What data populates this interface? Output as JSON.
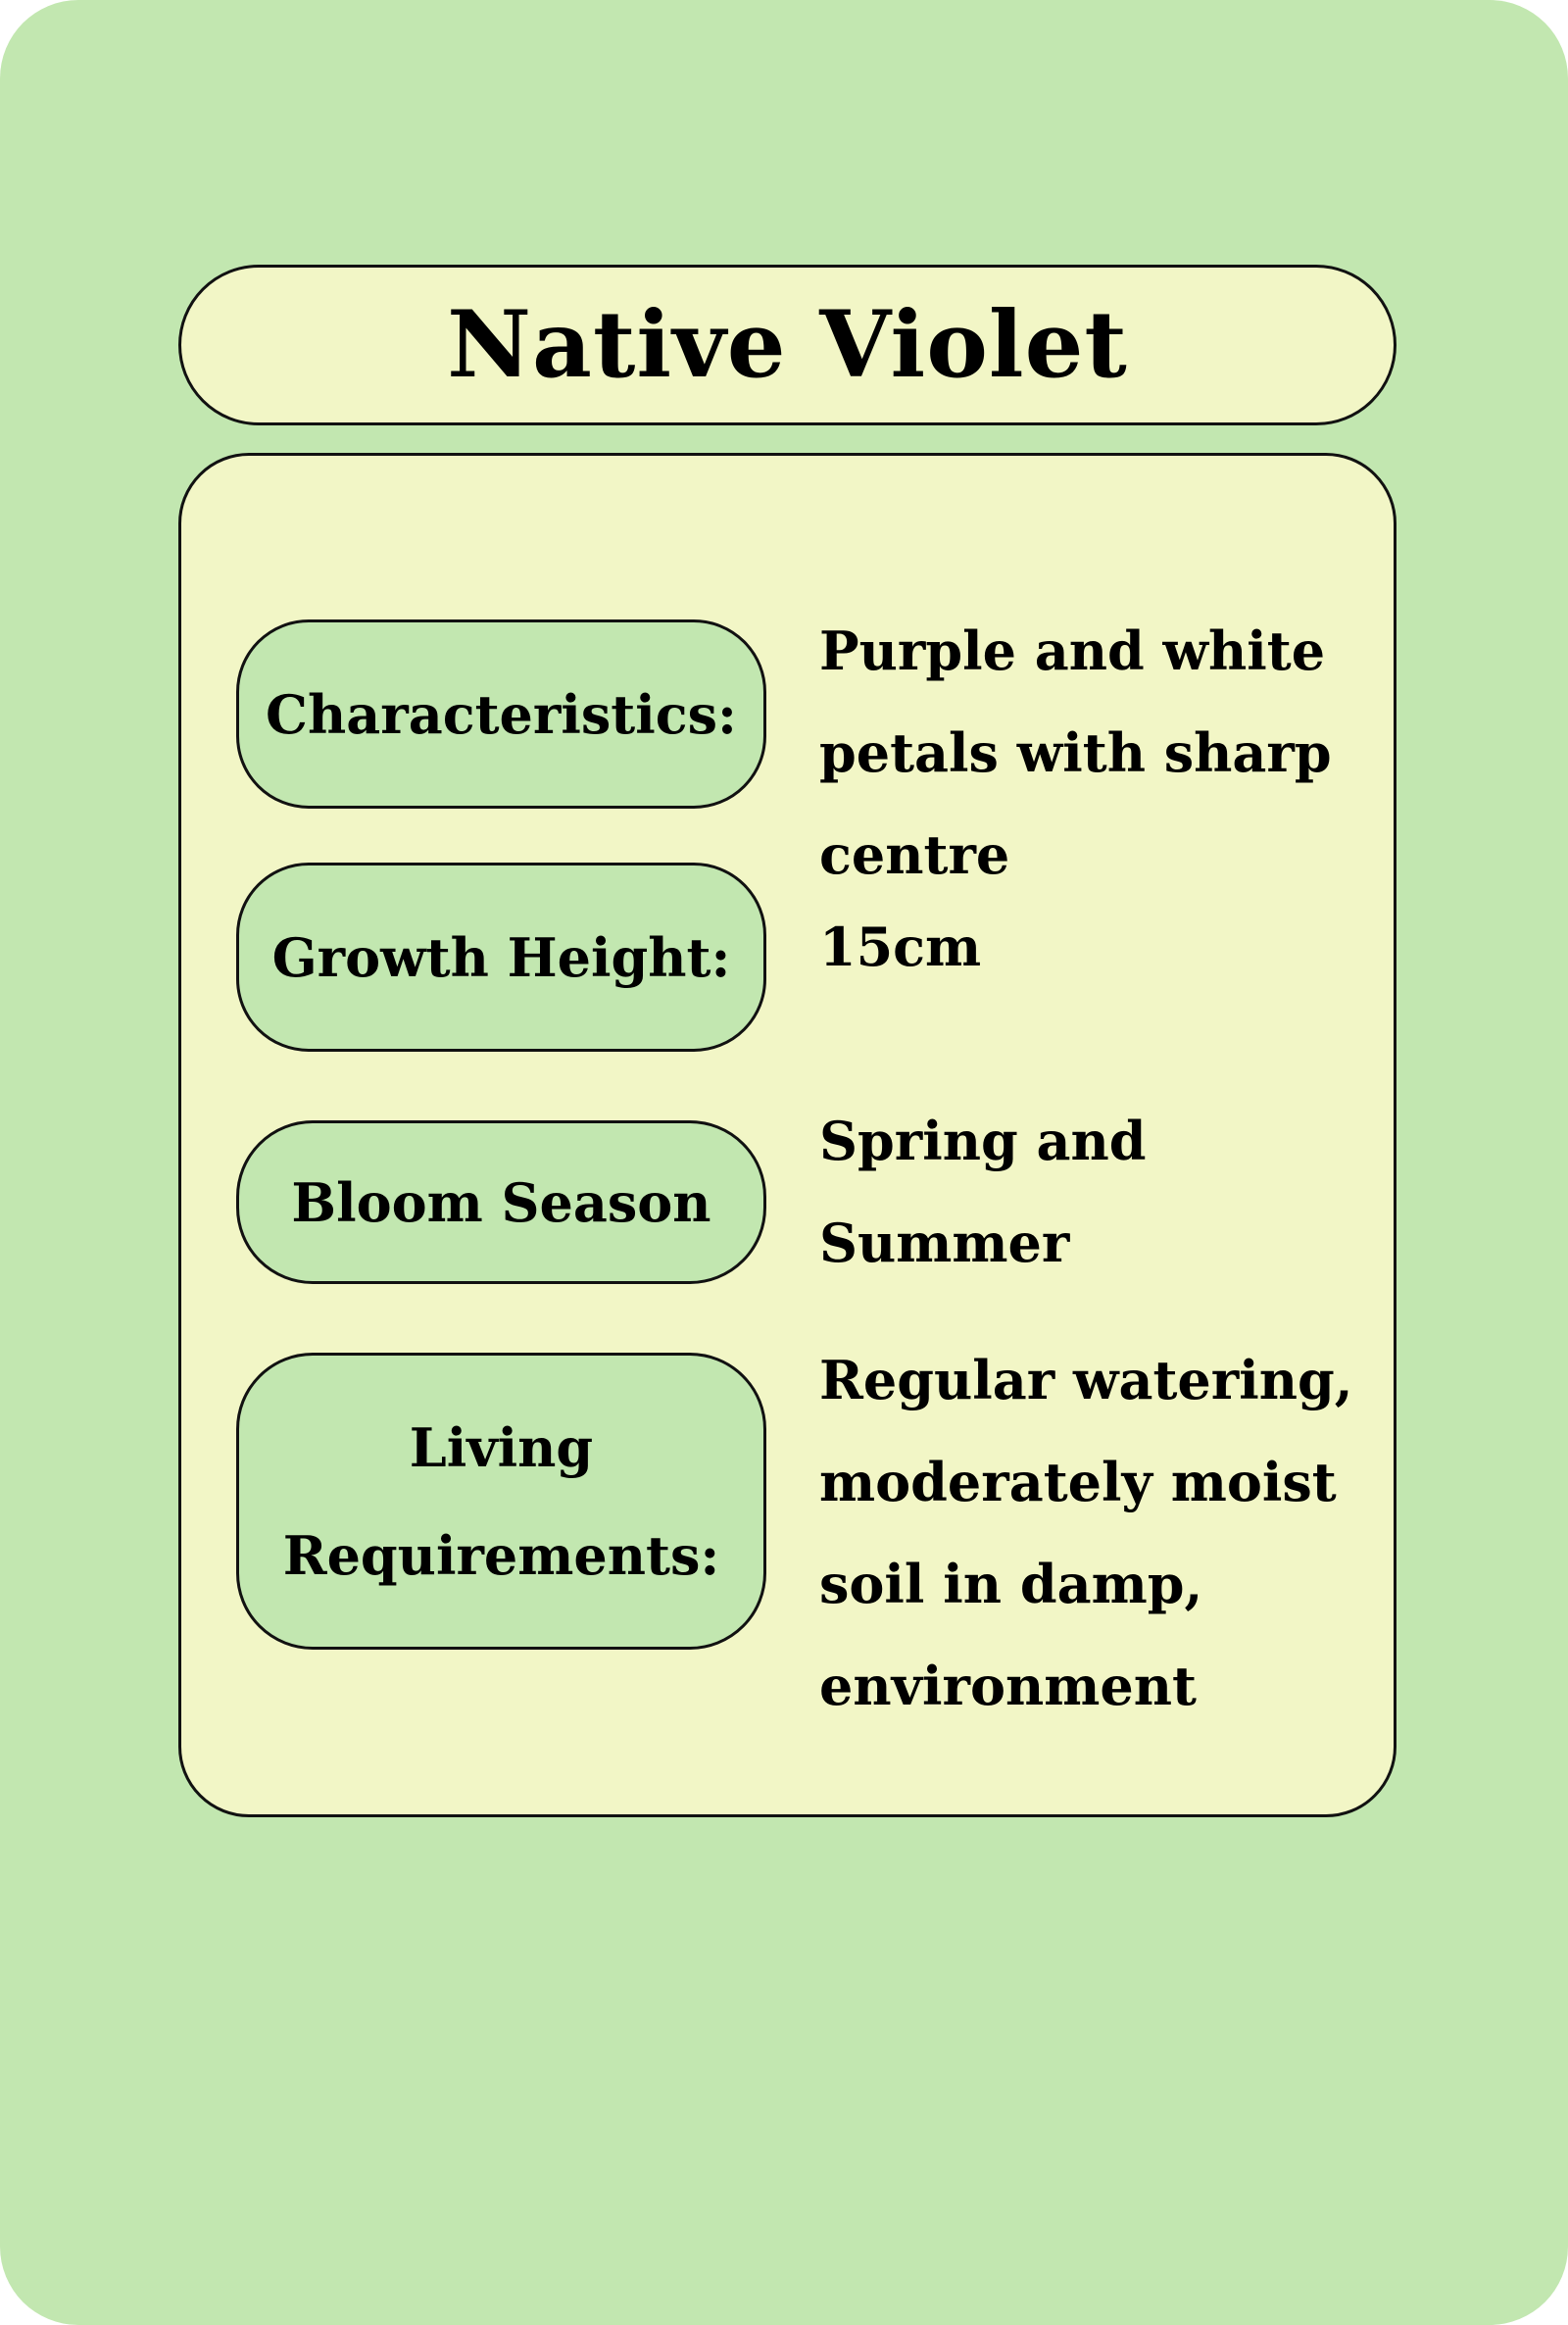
{
  "title": "Native Violet",
  "colors": {
    "background": "#c2e7b0",
    "panel": "#f2f6c6",
    "label_pill": "#c2e7b0",
    "border": "#111111",
    "text": "#000000"
  },
  "rows": [
    {
      "label": "Characteristics:",
      "value_lines": [
        "Purple and white",
        "petals with sharp",
        "centre"
      ]
    },
    {
      "label": "Growth Height:",
      "value_lines": [
        "15cm"
      ]
    },
    {
      "label": "Bloom Season",
      "value_lines": [
        "Spring and",
        "Summer"
      ]
    },
    {
      "label_lines": [
        "Living",
        "Requirements:"
      ],
      "value_lines": [
        "Regular watering,",
        "moderately moist",
        "soil in damp,",
        "environment"
      ]
    }
  ]
}
